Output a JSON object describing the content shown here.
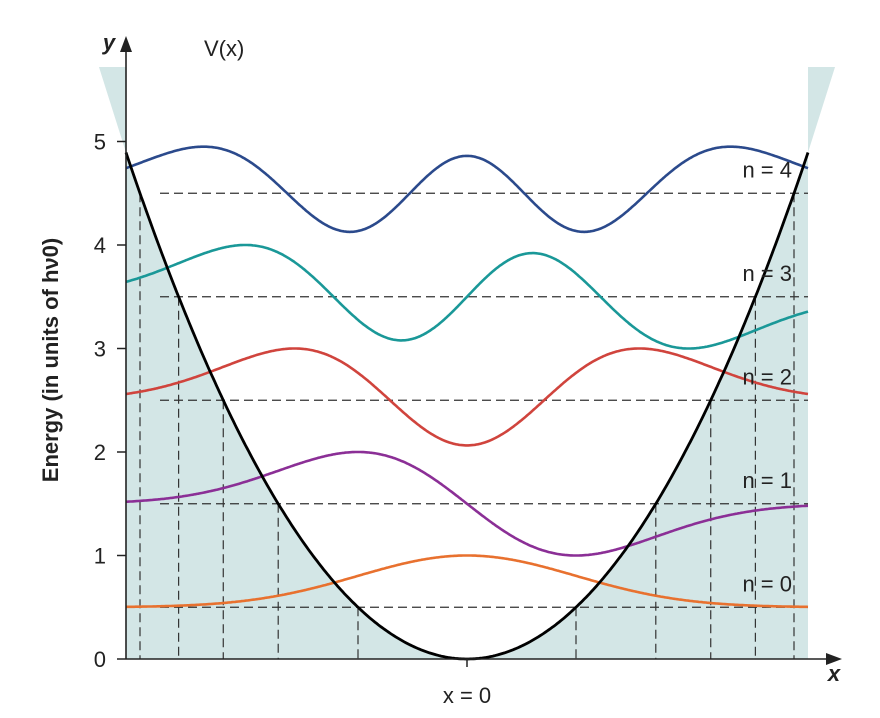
{
  "chart_data": {
    "type": "line",
    "title": "",
    "xlabel": "x",
    "ylabel": "y",
    "y_axis_title": "Energy (in units of hν0)",
    "x_center_label": "x = 0",
    "potential_label": "V(x)",
    "ylim": [
      0,
      5.7
    ],
    "y_ticks": [
      "0",
      "1",
      "2",
      "3",
      "4",
      "5"
    ],
    "potential": {
      "name": "V(x)",
      "form": "parabola",
      "vertex_energy": 0,
      "color": "#000000"
    },
    "series": [
      {
        "name": "n = 0",
        "n": 0,
        "energy": 0.5,
        "peak_amplitude": 0.5,
        "color": "#e8712f"
      },
      {
        "name": "n = 1",
        "n": 1,
        "energy": 1.5,
        "peak_amplitude": 0.5,
        "color": "#8b2f96"
      },
      {
        "name": "n = 2",
        "n": 2,
        "energy": 2.5,
        "peak_amplitude": 0.5,
        "color": "#d0443d"
      },
      {
        "name": "n = 3",
        "n": 3,
        "energy": 3.5,
        "peak_amplitude": 0.5,
        "color": "#1a9898"
      },
      {
        "name": "n = 4",
        "n": 4,
        "energy": 4.5,
        "peak_amplitude": 0.45,
        "color": "#2b4a8c"
      }
    ],
    "forbidden_region_color": "#d3e6e6",
    "grid": false
  }
}
